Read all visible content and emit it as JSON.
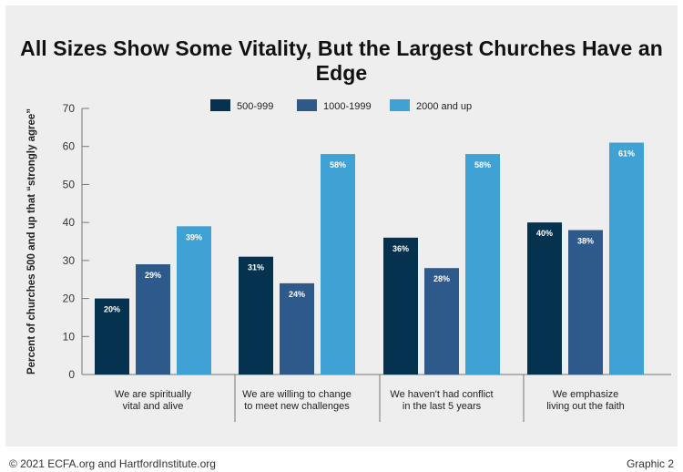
{
  "title": "All Sizes Show Some Vitality, But the Largest Churches Have an Edge",
  "footer": {
    "copyright": "© 2021 ECFA.org and HartfordInstitute.org",
    "graphic_label": "Graphic 2"
  },
  "chart_data": {
    "type": "bar",
    "title": "All Sizes Show Some Vitality, But the Largest Churches Have an Edge",
    "ylabel": "Percent of churches 500 and up that “strongly agree”",
    "xlabel": "",
    "ylim": [
      0,
      70
    ],
    "yticks": [
      0,
      10,
      20,
      30,
      40,
      50,
      60,
      70
    ],
    "grid": false,
    "legend_position": "top",
    "categories": [
      [
        "We are spiritually",
        "vital and alive"
      ],
      [
        "We are willing to change",
        "to meet new challenges"
      ],
      [
        "We haven't had conflict",
        "in the last 5 years"
      ],
      [
        "We emphasize",
        "living out the faith"
      ]
    ],
    "series": [
      {
        "name": "500-999",
        "color": "#05324f",
        "values": [
          20,
          31,
          36,
          40
        ],
        "labels": [
          "20%",
          "31%",
          "36%",
          "40%"
        ]
      },
      {
        "name": "1000-1999",
        "color": "#2e5a8b",
        "values": [
          29,
          24,
          28,
          38
        ],
        "labels": [
          "29%",
          "24%",
          "28%",
          "38%"
        ]
      },
      {
        "name": "2000 and up",
        "color": "#40a2d4",
        "values": [
          39,
          58,
          58,
          61
        ],
        "labels": [
          "39%",
          "58%",
          "58%",
          "61%"
        ]
      }
    ]
  }
}
